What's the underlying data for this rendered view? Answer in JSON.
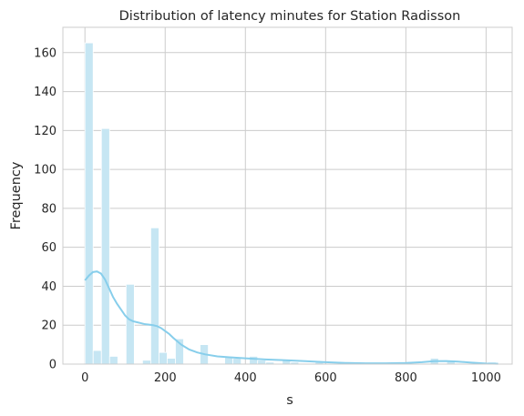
{
  "chart_data": {
    "type": "bar",
    "title": "Distribution of latency minutes for Station Radisson",
    "xlabel": "s",
    "ylabel": "Frequency",
    "xlim": [
      -55,
      1065
    ],
    "ylim": [
      0,
      173
    ],
    "xticks": [
      0,
      200,
      400,
      600,
      800,
      1000
    ],
    "yticks": [
      0,
      20,
      40,
      60,
      80,
      100,
      120,
      140,
      160
    ],
    "grid": true,
    "bin_width": 20.5,
    "bins": [
      {
        "x0": 0,
        "count": 165
      },
      {
        "x0": 20.5,
        "count": 7
      },
      {
        "x0": 41,
        "count": 121
      },
      {
        "x0": 61.5,
        "count": 4
      },
      {
        "x0": 102.5,
        "count": 41
      },
      {
        "x0": 143.5,
        "count": 2
      },
      {
        "x0": 164,
        "count": 70
      },
      {
        "x0": 184.5,
        "count": 6
      },
      {
        "x0": 205,
        "count": 3
      },
      {
        "x0": 225.5,
        "count": 13
      },
      {
        "x0": 287,
        "count": 10
      },
      {
        "x0": 348.5,
        "count": 4
      },
      {
        "x0": 369,
        "count": 3
      },
      {
        "x0": 410,
        "count": 4
      },
      {
        "x0": 430.5,
        "count": 2
      },
      {
        "x0": 451,
        "count": 1
      },
      {
        "x0": 492,
        "count": 2
      },
      {
        "x0": 512.5,
        "count": 1
      },
      {
        "x0": 574,
        "count": 1
      },
      {
        "x0": 861,
        "count": 3
      },
      {
        "x0": 902,
        "count": 2
      },
      {
        "x0": 1004.5,
        "count": 1
      }
    ],
    "kde": {
      "x": [
        0,
        10,
        20,
        30,
        40,
        50,
        60,
        70,
        80,
        90,
        100,
        110,
        120,
        130,
        140,
        150,
        160,
        170,
        180,
        190,
        200,
        210,
        220,
        240,
        260,
        280,
        300,
        330,
        360,
        400,
        450,
        500,
        550,
        600,
        650,
        700,
        750,
        800,
        840,
        870,
        900,
        930,
        960,
        1000,
        1030
      ],
      "y": [
        43,
        45.5,
        47.3,
        47.6,
        46.5,
        43.5,
        39,
        34.5,
        31,
        28,
        25,
        23,
        22,
        21.5,
        21,
        20.5,
        20.3,
        20,
        19.5,
        18.5,
        17,
        15.5,
        13.5,
        10,
        7.5,
        6,
        5,
        4,
        3.5,
        3,
        2.4,
        2,
        1.5,
        1,
        0.6,
        0.4,
        0.4,
        0.6,
        1,
        1.5,
        1.6,
        1.3,
        0.8,
        0.3,
        0.2
      ]
    },
    "colors": {
      "bar_fill": "#c6e6f3",
      "bar_stroke": "#ffffff",
      "kde_line": "#87ceeb",
      "grid": "#cccccc",
      "spine": "#cccccc"
    }
  }
}
